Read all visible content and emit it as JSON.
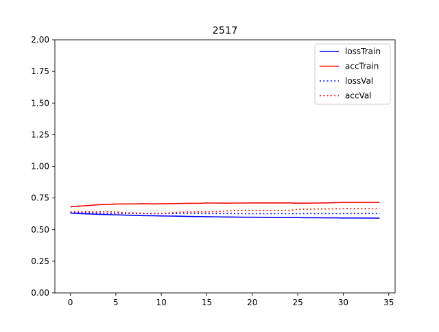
{
  "chart_data": {
    "type": "line",
    "title": "2517",
    "xlabel": "",
    "ylabel": "",
    "xlim": [
      -1.7,
      35.7
    ],
    "ylim": [
      0,
      2.0
    ],
    "xticks": [
      0,
      5,
      10,
      15,
      20,
      25,
      30,
      35
    ],
    "yticks": [
      0.0,
      0.25,
      0.5,
      0.75,
      1.0,
      1.25,
      1.5,
      1.75,
      2.0
    ],
    "xtick_labels": [
      "0",
      "5",
      "10",
      "15",
      "20",
      "25",
      "30",
      "35"
    ],
    "ytick_labels": [
      "0.00",
      "0.25",
      "0.50",
      "0.75",
      "1.00",
      "1.25",
      "1.50",
      "1.75",
      "2.00"
    ],
    "grid": false,
    "legend_position": "top-right",
    "x": [
      0,
      1,
      2,
      3,
      4,
      5,
      6,
      7,
      8,
      9,
      10,
      11,
      12,
      13,
      14,
      15,
      16,
      17,
      18,
      19,
      20,
      21,
      22,
      23,
      24,
      25,
      26,
      27,
      28,
      29,
      30,
      31,
      32,
      33,
      34
    ],
    "series": [
      {
        "name": "lossTrain",
        "color": "#0000ff",
        "style": "solid",
        "values": [
          0.63,
          0.627,
          0.624,
          0.621,
          0.619,
          0.617,
          0.615,
          0.613,
          0.611,
          0.61,
          0.608,
          0.607,
          0.606,
          0.604,
          0.603,
          0.602,
          0.601,
          0.6,
          0.599,
          0.598,
          0.598,
          0.597,
          0.596,
          0.596,
          0.595,
          0.595,
          0.594,
          0.594,
          0.593,
          0.593,
          0.592,
          0.592,
          0.592,
          0.591,
          0.591
        ]
      },
      {
        "name": "accTrain",
        "color": "#ff0000",
        "style": "solid",
        "values": [
          0.68,
          0.686,
          0.69,
          0.697,
          0.699,
          0.702,
          0.703,
          0.703,
          0.705,
          0.703,
          0.704,
          0.706,
          0.706,
          0.708,
          0.708,
          0.71,
          0.71,
          0.709,
          0.71,
          0.71,
          0.711,
          0.711,
          0.711,
          0.711,
          0.711,
          0.709,
          0.709,
          0.71,
          0.711,
          0.713,
          0.715,
          0.715,
          0.715,
          0.715,
          0.715
        ]
      },
      {
        "name": "lossVal",
        "color": "#0000ff",
        "style": "dotted",
        "values": [
          0.635,
          0.633,
          0.631,
          0.63,
          0.629,
          0.629,
          0.628,
          0.628,
          0.628,
          0.627,
          0.627,
          0.627,
          0.628,
          0.628,
          0.628,
          0.627,
          0.627,
          0.627,
          0.627,
          0.626,
          0.626,
          0.626,
          0.626,
          0.626,
          0.626,
          0.626,
          0.627,
          0.627,
          0.627,
          0.627,
          0.627,
          0.627,
          0.627,
          0.627,
          0.627
        ]
      },
      {
        "name": "accVal",
        "color": "#ff0000",
        "style": "dotted",
        "values": [
          0.64,
          0.642,
          0.64,
          0.641,
          0.642,
          0.64,
          0.634,
          0.632,
          0.63,
          0.628,
          0.628,
          0.632,
          0.638,
          0.64,
          0.64,
          0.641,
          0.642,
          0.646,
          0.65,
          0.652,
          0.652,
          0.652,
          0.652,
          0.652,
          0.652,
          0.66,
          0.662,
          0.663,
          0.663,
          0.664,
          0.665,
          0.665,
          0.665,
          0.665,
          0.665
        ]
      }
    ]
  }
}
